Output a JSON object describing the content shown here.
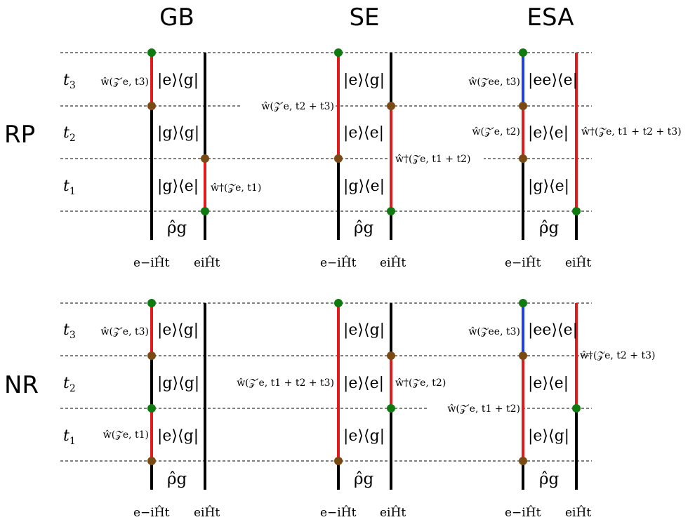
{
  "headers": {
    "gb": "GB",
    "se": "SE",
    "esa": "ESA"
  },
  "rows": {
    "rp": "RP",
    "nr": "NR"
  },
  "colors": {
    "ground": "#000000",
    "excited": "#e31a1c",
    "double": "#1f3fe8",
    "dot_green": "#0f7a0f",
    "dot_brown": "#7a4a14"
  },
  "times": {
    "t1": "t",
    "t1_sub": "1",
    "t2": "t",
    "t2_sub": "2",
    "t3": "t",
    "t3_sub": "3"
  },
  "states": {
    "eg": "|e⟩⟨g|",
    "gg": "|g⟩⟨g|",
    "ge": "|g⟩⟨e|",
    "ee": "|e⟩⟨e|",
    "eee": "|ee⟩⟨e|"
  },
  "density": "ρ̂g",
  "propagators": {
    "left": "e−iĤt",
    "right": "eiĤt"
  },
  "rp_operators": {
    "gb_t3": "ŵ(𝒵′e, t3)",
    "gb_t1": "ŵ†(𝒵e, t1)",
    "se_t23": "ŵ(𝒵′e, t2 + t3)",
    "se_t12": "ŵ†(𝒵e, t1 + t2)",
    "esa_t3": "ŵ(𝒵ee, t3)",
    "esa_t2": "ŵ(𝒵′e, t2)",
    "esa_t123": "ŵ†(𝒵e, t1 + t2 + t3)"
  },
  "nr_operators": {
    "gb_t3": "ŵ(𝒵′e, t3)",
    "gb_t1": "ŵ(𝒵e, t1)",
    "se_t123": "ŵ(𝒵′e, t1 + t2 + t3)",
    "se_t2": "ŵ†(𝒵e, t2)",
    "esa_t3": "ŵ(𝒵ee, t3)",
    "esa_t12": "ŵ(𝒵′e, t1 + t2)",
    "esa_t23": "ŵ†(𝒵e, t2 + t3)"
  }
}
